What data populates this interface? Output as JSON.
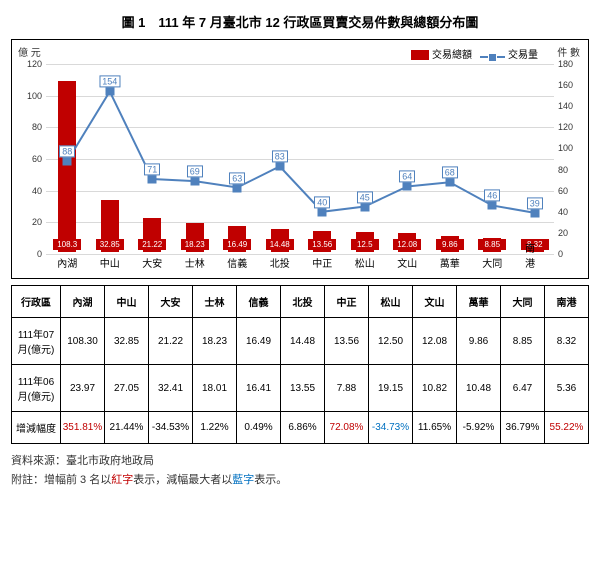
{
  "title": "圖 1　111 年 7 月臺北市 12 行政區買賣交易件數與總額分布圖",
  "leftAxis": {
    "label": "億 元",
    "min": 0,
    "max": 120,
    "step": 20
  },
  "rightAxis": {
    "label": "件 數",
    "min": 0,
    "max": 180,
    "step": 20
  },
  "legend": {
    "bar": "交易總額",
    "line": "交易量"
  },
  "colors": {
    "bar": "#c00000",
    "line": "#4f81bd",
    "grid": "#d9d9d9",
    "bg": "#ffffff"
  },
  "chart_type": "bar+line dual-axis",
  "categories": [
    "內湖",
    "中山",
    "大安",
    "士林",
    "信義",
    "北投",
    "中正",
    "松山",
    "文山",
    "萬華",
    "大同",
    "南港"
  ],
  "bar_values": [
    108.3,
    32.85,
    21.22,
    18.23,
    16.49,
    14.48,
    13.56,
    12.5,
    12.08,
    9.86,
    8.85,
    8.32
  ],
  "line_values": [
    88,
    154,
    71,
    69,
    63,
    83,
    40,
    45,
    64,
    68,
    46,
    39
  ],
  "table": {
    "head": [
      "行政區",
      "內湖",
      "中山",
      "大安",
      "士林",
      "信義",
      "北投",
      "中正",
      "松山",
      "文山",
      "萬華",
      "大同",
      "南港"
    ],
    "rows": [
      {
        "label": "111年07月(億元)",
        "vals": [
          "108.30",
          "32.85",
          "21.22",
          "18.23",
          "16.49",
          "14.48",
          "13.56",
          "12.50",
          "12.08",
          "9.86",
          "8.85",
          "8.32"
        ]
      },
      {
        "label": "111年06月(億元)",
        "vals": [
          "23.97",
          "27.05",
          "32.41",
          "18.01",
          "16.41",
          "13.55",
          "7.88",
          "19.15",
          "10.82",
          "10.48",
          "6.47",
          "5.36"
        ]
      },
      {
        "label": "增減幅度",
        "vals": [
          "351.81%",
          "21.44%",
          "-34.53%",
          "1.22%",
          "0.49%",
          "6.86%",
          "72.08%",
          "-34.73%",
          "11.65%",
          "-5.92%",
          "36.79%",
          "55.22%"
        ],
        "cls": [
          "red",
          "",
          "",
          "",
          "",
          "",
          "red",
          "blue",
          "",
          "",
          "",
          "red"
        ]
      }
    ]
  },
  "footer": {
    "source_label": "資料來源：",
    "source": "臺北市政府地政局",
    "note_prefix": "附註：增幅前 3 名以",
    "note_red": "紅字",
    "note_mid": "表示，減幅最大者以",
    "note_blue": "藍字",
    "note_end": "表示。"
  }
}
